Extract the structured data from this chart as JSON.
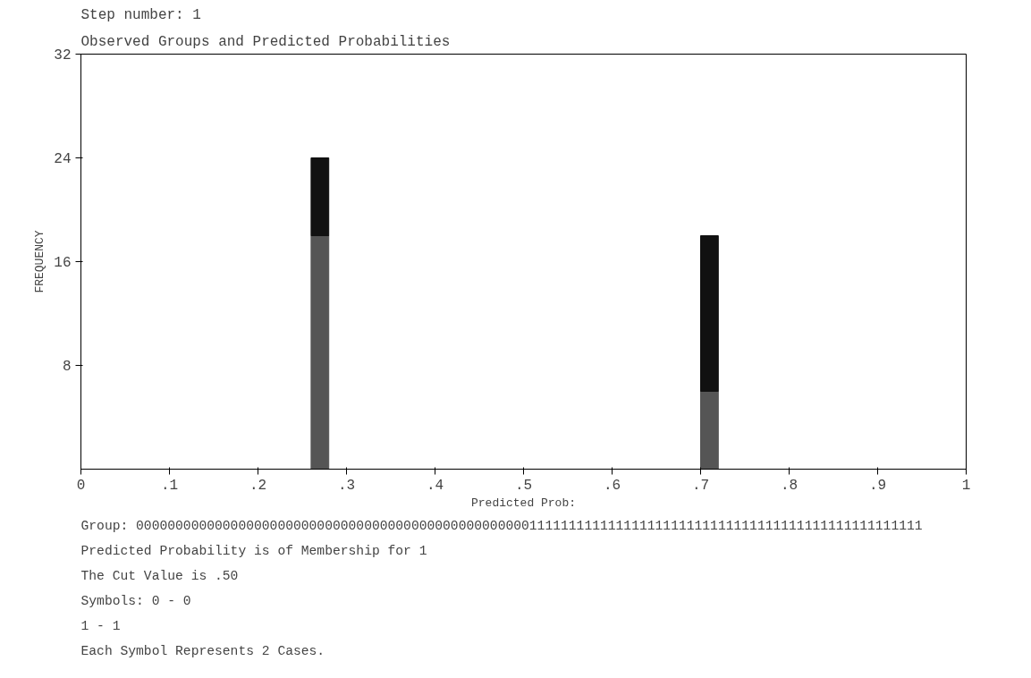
{
  "chart_data": {
    "type": "bar",
    "stacked": true,
    "title": "Step number: 1",
    "subtitle": "Observed Groups and Predicted Probabilities",
    "ylabel": "FREQUENCY",
    "xlabel": "Predicted Prob:",
    "x": [
      0.27,
      0.71
    ],
    "series": [
      {
        "color": "#555555",
        "values": [
          18,
          6
        ]
      },
      {
        "color": "#111111",
        "values": [
          6,
          12
        ]
      }
    ],
    "xlim": [
      0,
      1
    ],
    "xticks": [
      {
        "value": 0,
        "label": "0"
      },
      {
        "value": 0.1,
        "label": ".1"
      },
      {
        "value": 0.2,
        "label": ".2"
      },
      {
        "value": 0.3,
        "label": ".3"
      },
      {
        "value": 0.4,
        "label": ".4"
      },
      {
        "value": 0.5,
        "label": ".5"
      },
      {
        "value": 0.6,
        "label": ".6"
      },
      {
        "value": 0.7,
        "label": ".7"
      },
      {
        "value": 0.8,
        "label": ".8"
      },
      {
        "value": 0.9,
        "label": ".9"
      },
      {
        "value": 1,
        "label": "1"
      }
    ],
    "ylim": [
      0,
      32
    ],
    "yticks": [
      8,
      16,
      24,
      32
    ],
    "grid": false,
    "annotations": [
      "Group:  0000000000000000000000000000000000000000000000000011111111111111111111111111111111111111111111111111",
      "Predicted Probability is of Membership for 1",
      "The Cut Value is .50",
      "Symbols: 0 - 0",
      "1 - 1",
      "Each Symbol Represents 2 Cases."
    ]
  }
}
